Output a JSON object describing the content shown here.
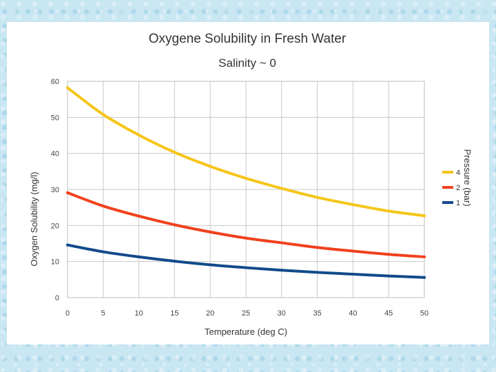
{
  "chart_data": {
    "type": "line",
    "title": "Oxygene Solubility in Fresh Water",
    "subtitle": "Salinity ~ 0",
    "xlabel": "Temperature (deg C)",
    "ylabel": "Oxygen Solubility (mg/l)",
    "legend_title": "Pressure (bar)",
    "legend_position": "right",
    "grid": true,
    "xlim": [
      0,
      50
    ],
    "ylim": [
      0,
      60
    ],
    "x_ticks": [
      "0",
      "5",
      "10",
      "15",
      "20",
      "25",
      "30",
      "35",
      "40",
      "45",
      "50"
    ],
    "y_ticks": [
      "0",
      "10",
      "20",
      "30",
      "40",
      "50",
      "60"
    ],
    "x": [
      0,
      5,
      10,
      15,
      20,
      25,
      30,
      35,
      40,
      45,
      50
    ],
    "series": [
      {
        "name": "4",
        "color": "#f5c518",
        "values": [
          58.2,
          50.8,
          45.1,
          40.3,
          36.4,
          33.1,
          30.3,
          27.8,
          25.8,
          24.0,
          22.7
        ]
      },
      {
        "name": "2",
        "color": "#f0411c",
        "values": [
          29.1,
          25.4,
          22.6,
          20.2,
          18.2,
          16.5,
          15.2,
          13.9,
          12.9,
          12.0,
          11.3
        ]
      },
      {
        "name": "1",
        "color": "#114a8a",
        "values": [
          14.6,
          12.7,
          11.3,
          10.1,
          9.1,
          8.3,
          7.6,
          7.0,
          6.5,
          6.0,
          5.6
        ]
      }
    ]
  }
}
